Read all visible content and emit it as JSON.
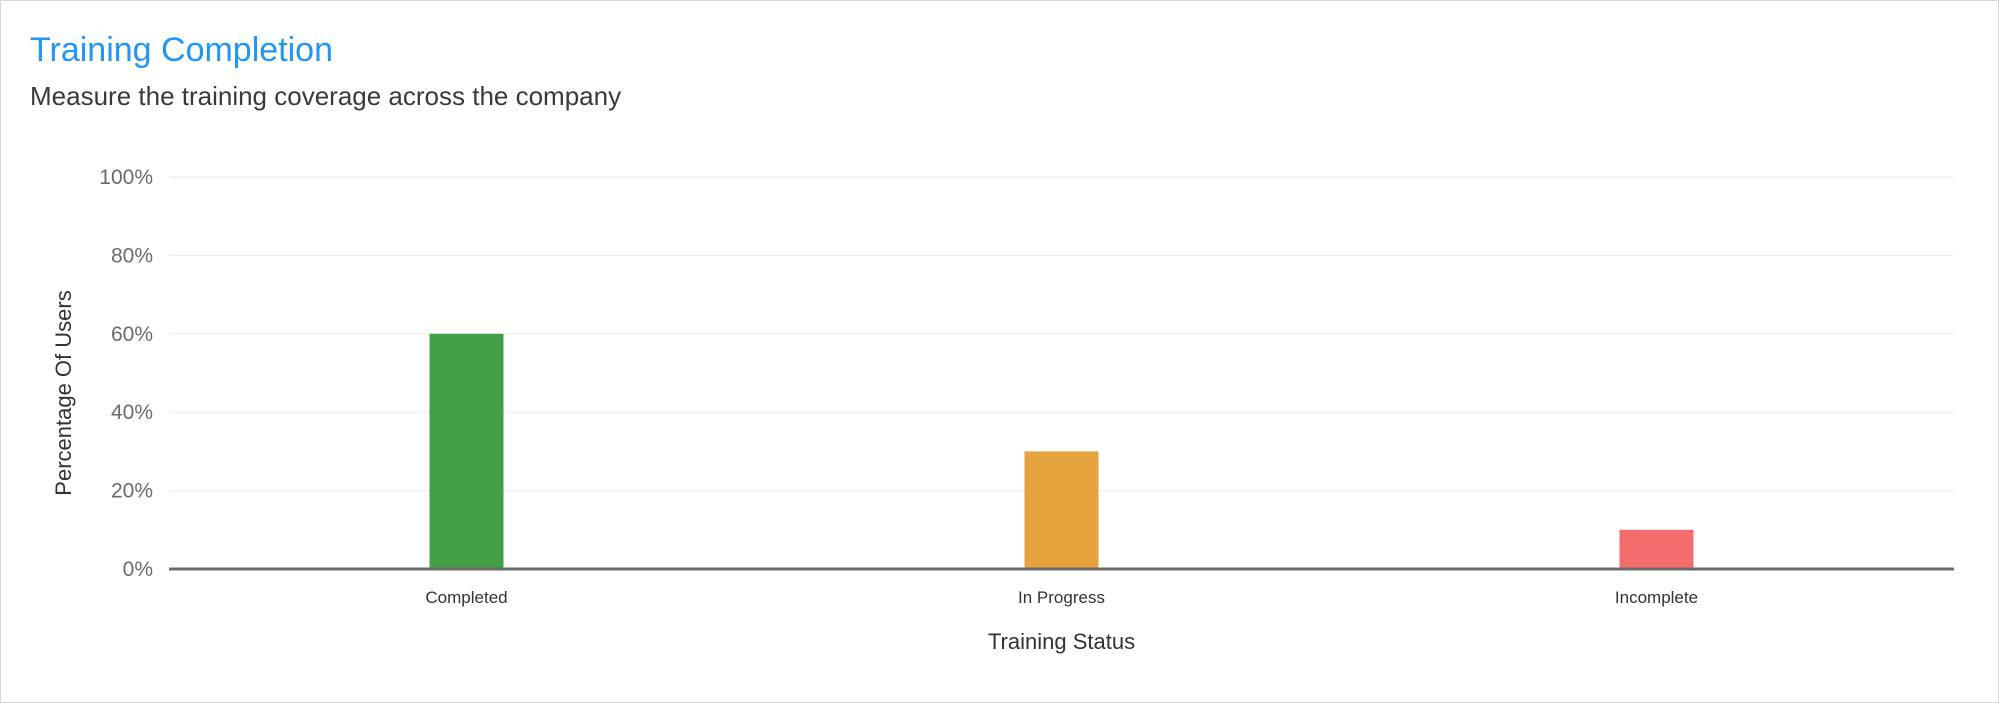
{
  "header": {
    "title": "Training Completion",
    "subtitle": "Measure the training coverage across the company"
  },
  "chart_data": {
    "type": "bar",
    "title": "Training Completion",
    "subtitle": "Measure the training coverage across the company",
    "xlabel": "Training Status",
    "ylabel": "Percentage Of Users",
    "categories": [
      "Completed",
      "In Progress",
      "Incomplete"
    ],
    "values": [
      60,
      30,
      10
    ],
    "colors": [
      "#43a047",
      "#e6a23c",
      "#f46d6d"
    ],
    "ylim": [
      0,
      100
    ],
    "yticks": [
      0,
      20,
      40,
      60,
      80,
      100
    ],
    "ytick_labels": [
      "0%",
      "20%",
      "40%",
      "60%",
      "80%",
      "100%"
    ],
    "grid": true,
    "legend": "none"
  }
}
